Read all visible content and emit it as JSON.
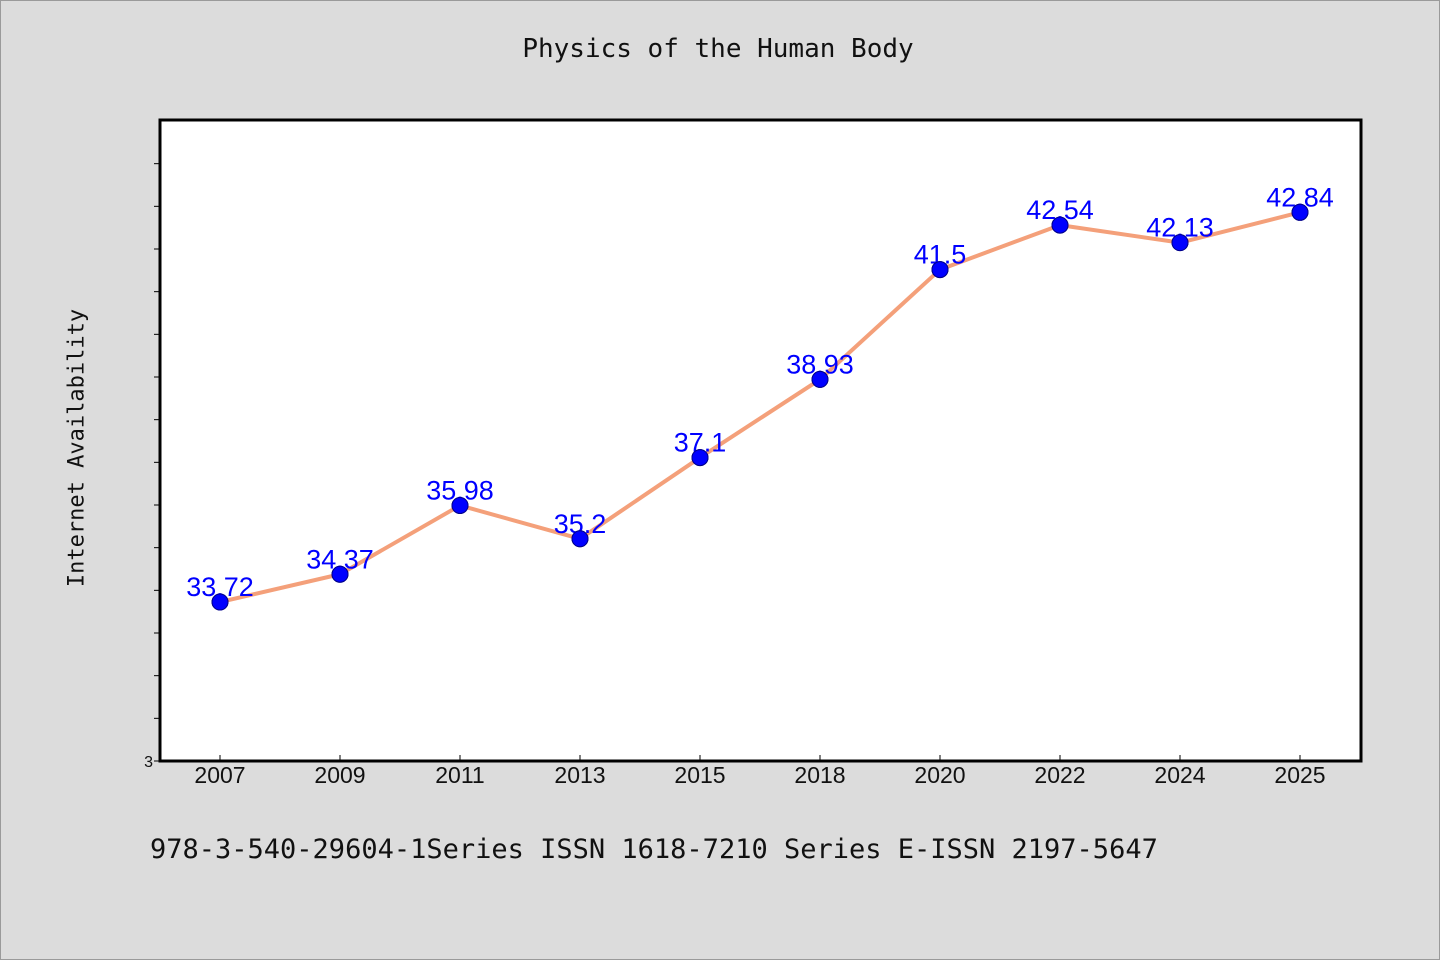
{
  "chart_data": {
    "type": "line",
    "title": "Physics of the Human Body",
    "xlabel": "",
    "ylabel": "Internet Availability",
    "categories": [
      "2007",
      "2009",
      "2011",
      "2013",
      "2015",
      "2018",
      "2020",
      "2022",
      "2024",
      "2025"
    ],
    "series": [
      {
        "values": [
          33.72,
          34.37,
          35.98,
          35.2,
          37.1,
          38.93,
          41.5,
          42.54,
          42.13,
          42.84
        ],
        "data_labels": [
          "33.72",
          "34.37",
          "35.98",
          "35.2",
          "37.1",
          "38.93",
          "41.5",
          "42.54",
          "42.13",
          "42.84"
        ],
        "line_color": "#f4a07a",
        "marker_color": "#0000ff"
      }
    ],
    "y_tick_labels": [
      "3"
    ],
    "ylim": [
      30,
      45
    ],
    "grid": false,
    "legend": "none"
  },
  "footer": {
    "text": "978-3-540-29604-1Series ISSN 1618-7210 Series E-ISSN 2197-5647"
  }
}
